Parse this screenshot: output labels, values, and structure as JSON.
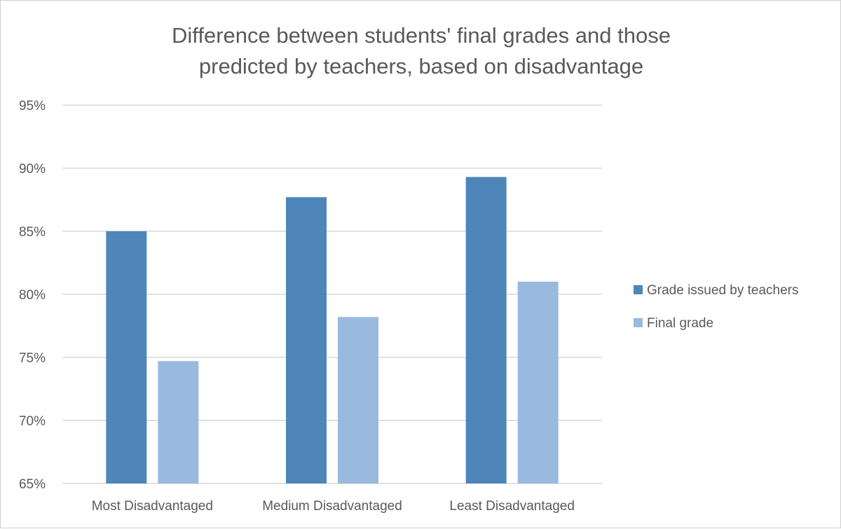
{
  "chart_data": {
    "type": "bar",
    "title_lines": [
      "Difference between students' final grades and those",
      "predicted by teachers, based on disadvantage"
    ],
    "categories": [
      "Most Disadvantaged",
      "Medium Disadvantaged",
      "Least Disadvantaged"
    ],
    "series": [
      {
        "name": "Grade issued by teachers",
        "values": [
          85.0,
          87.7,
          89.3
        ],
        "color": "#4e86b9"
      },
      {
        "name": "Final grade",
        "values": [
          74.7,
          78.2,
          81.0
        ],
        "color": "#9ab9df"
      }
    ],
    "ylim": [
      65,
      95
    ],
    "yticks": [
      95,
      90,
      85,
      80,
      75,
      70,
      65
    ],
    "ytick_labels": [
      "95%",
      "90%",
      "85%",
      "80%",
      "75%",
      "70%",
      "65%"
    ],
    "grid": true,
    "legend_position": "right",
    "gridline_color": "#d9d9d9",
    "text_color": "#595959"
  }
}
